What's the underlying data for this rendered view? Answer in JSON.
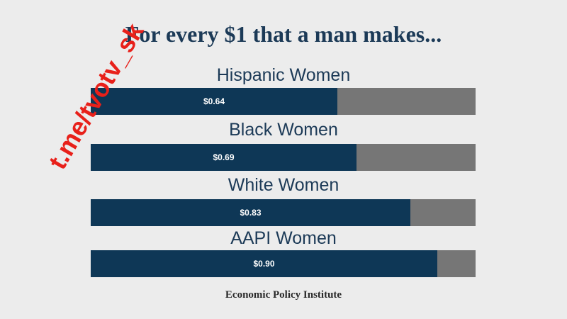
{
  "chart_data": {
    "type": "bar",
    "orientation": "horizontal",
    "title": "For every $1 that a man makes...",
    "categories": [
      "Hispanic Women",
      "Black Women",
      "White Women",
      "AAPI Women"
    ],
    "values": [
      0.64,
      0.69,
      0.83,
      0.9
    ],
    "value_labels": [
      "$0.64",
      "$0.69",
      "$0.83",
      "$0.90"
    ],
    "xlim": [
      0,
      1
    ],
    "source": "Economic Policy Institute",
    "colors": {
      "filled": "#0e3756",
      "remainder": "#767676",
      "title": "#1c3a57"
    }
  },
  "watermark": "t.me/tvotv_sk"
}
